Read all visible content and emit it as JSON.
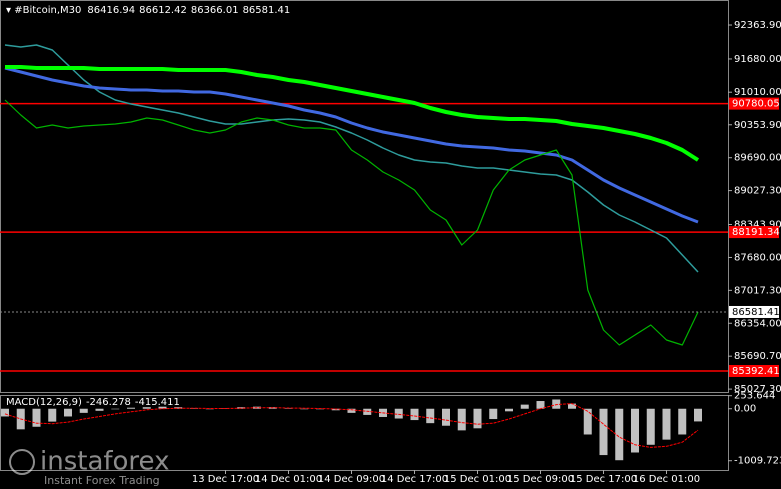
{
  "header": {
    "symbol": "#Bitcoin,M30",
    "open": 86416.94,
    "high": 86612.42,
    "low": 86366.01,
    "close": 86581.41
  },
  "watermark": {
    "brand": "instaforex",
    "tagline": "Instant Forex Trading"
  },
  "chart_data": [
    {
      "type": "line",
      "categories": [
        null,
        null,
        null,
        null,
        null,
        null,
        null,
        null,
        null,
        null,
        null,
        null,
        null,
        null,
        "13 Dec 17:00",
        null,
        null,
        null,
        "14 Dec 01:00",
        null,
        null,
        null,
        "14 Dec 09:00",
        null,
        null,
        null,
        "14 Dec 17:00",
        null,
        null,
        null,
        "15 Dec 01:00",
        null,
        null,
        null,
        "15 Dec 09:00",
        null,
        null,
        null,
        "15 Dec 17:00",
        null,
        null,
        null,
        "16 Dec 01:00",
        null,
        null
      ],
      "series": [
        {
          "color": "#00b400",
          "values": [
            90852,
            90550,
            90289,
            90349,
            90289,
            90329,
            90349,
            90369,
            90409,
            90490,
            90450,
            90349,
            90248,
            90188,
            90248,
            90409,
            90490,
            90450,
            90349,
            90289,
            90289,
            90248,
            89845,
            89644,
            89402,
            89241,
            89039,
            88636,
            88434,
            87931,
            88233,
            89039,
            89442,
            89644,
            89744,
            89845,
            89341,
            87024,
            86218,
            85916,
            86117,
            86319,
            86016,
            85916,
            86581.41
          ]
        },
        {
          "color": "#00ff00",
          "values": [
            91517,
            91517,
            91497,
            91497,
            91497,
            91497,
            91477,
            91477,
            91477,
            91477,
            91477,
            91457,
            91457,
            91457,
            91457,
            91417,
            91356,
            91316,
            91256,
            91215,
            91155,
            91094,
            91034,
            90974,
            90913,
            90853,
            90792,
            90691,
            90611,
            90550,
            90510,
            90490,
            90470,
            90470,
            90450,
            90429,
            90369,
            90329,
            90288,
            90228,
            90167,
            90087,
            89986,
            89845,
            89644
          ]
        },
        {
          "color": "#4169e1",
          "values": [
            91497,
            91417,
            91336,
            91256,
            91195,
            91135,
            91094,
            91074,
            91054,
            91054,
            91034,
            91034,
            91014,
            91014,
            90974,
            90913,
            90853,
            90792,
            90732,
            90651,
            90591,
            90510,
            90389,
            90288,
            90208,
            90147,
            90087,
            90026,
            89966,
            89926,
            89905,
            89885,
            89845,
            89825,
            89784,
            89744,
            89644,
            89442,
            89241,
            89079,
            88938,
            88797,
            88656,
            88515,
            88394
          ]
        },
        {
          "color": "#2e9c9c",
          "values": [
            91961,
            91920,
            91961,
            91860,
            91558,
            91256,
            91014,
            90853,
            90772,
            90711,
            90651,
            90591,
            90510,
            90429,
            90369,
            90369,
            90409,
            90450,
            90470,
            90450,
            90409,
            90309,
            90188,
            90047,
            89885,
            89744,
            89644,
            89603,
            89583,
            89523,
            89483,
            89483,
            89442,
            89402,
            89361,
            89341,
            89241,
            88999,
            88737,
            88535,
            88394,
            88233,
            88072,
            87730,
            87387
          ]
        }
      ],
      "ylim": [
        84969,
        92868
      ],
      "yticks": [
        {
          "value": 92363.9,
          "label": "92363.90"
        },
        {
          "value": 91680,
          "label": "91680.00"
        },
        {
          "value": 91010,
          "label": "91010.00"
        },
        {
          "value": 90353.9,
          "label": "90353.90"
        },
        {
          "value": 89690,
          "label": "89690.00"
        },
        {
          "value": 89027.3,
          "label": "89027.30"
        },
        {
          "value": 88343.9,
          "label": "88343.90"
        },
        {
          "value": 87680,
          "label": "87680.00"
        },
        {
          "value": 87017.3,
          "label": "87017.30"
        },
        {
          "value": 86354,
          "label": "86354.00"
        },
        {
          "value": 85690.7,
          "label": "85690.70"
        },
        {
          "value": 85027.3,
          "label": "85027.30"
        }
      ],
      "levels": [
        90780.05,
        88191.34,
        85392.41
      ],
      "level_color": "#ff0000"
    },
    {
      "type": "bar",
      "label": "MACD(12,26,9)",
      "color": "#c0c0c0",
      "values": [
        -150,
        -400,
        -350,
        -250,
        -150,
        -80,
        -40,
        -10,
        20,
        30,
        40,
        30,
        10,
        0,
        10,
        30,
        40,
        30,
        10,
        0,
        -10,
        -30,
        -80,
        -120,
        -160,
        -190,
        -220,
        -280,
        -330,
        -420,
        -380,
        -200,
        -50,
        80,
        150,
        180,
        100,
        -500,
        -900,
        -1000,
        -850,
        -700,
        -600,
        -500,
        -246.278
      ],
      "signal": {
        "color": "#ff0000",
        "values": [
          -100,
          -200,
          -280,
          -290,
          -260,
          -200,
          -150,
          -100,
          -60,
          -20,
          0,
          10,
          10,
          5,
          5,
          10,
          20,
          20,
          15,
          10,
          5,
          -5,
          -20,
          -50,
          -80,
          -110,
          -140,
          -180,
          -220,
          -270,
          -300,
          -280,
          -200,
          -100,
          0,
          80,
          100,
          -50,
          -300,
          -550,
          -700,
          -750,
          -730,
          -650,
          -415.411
        ]
      },
      "ylim": [
        -1190,
        267
      ],
      "yticks": [
        253.644,
        {
          "value": 0,
          "label": "0.00"
        },
        -1009.723
      ]
    }
  ]
}
